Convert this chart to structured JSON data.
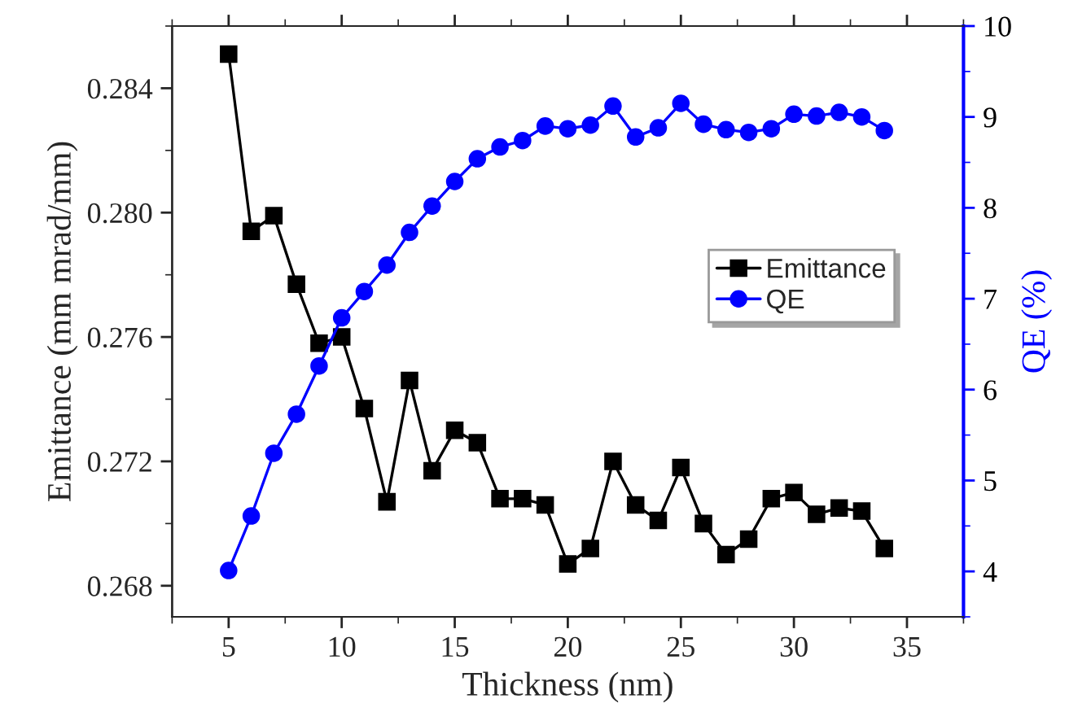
{
  "chart_data": {
    "type": "line",
    "xlabel": "Thickness (nm)",
    "ylabel": "Emittance (mm mrad/mm)",
    "y2label": "QE (%)",
    "x": [
      5,
      6,
      7,
      8,
      9,
      10,
      11,
      12,
      13,
      14,
      15,
      16,
      17,
      18,
      19,
      20,
      21,
      22,
      23,
      24,
      25,
      26,
      27,
      28,
      29,
      30,
      31,
      32,
      33,
      34
    ],
    "series": [
      {
        "name": "Emittance",
        "color": "#000000",
        "marker": "square",
        "values": [
          0.2851,
          0.2794,
          0.2799,
          0.2777,
          0.2758,
          0.276,
          0.2737,
          0.2707,
          0.2746,
          0.2717,
          0.273,
          0.2726,
          0.2708,
          0.2708,
          0.2706,
          0.2687,
          0.2692,
          0.272,
          0.2706,
          0.2701,
          0.2718,
          0.27,
          0.269,
          0.2695,
          0.2708,
          0.271,
          0.2703,
          0.2705,
          0.2704,
          0.2692
        ]
      },
      {
        "name": "QE",
        "color": "#0000ff",
        "marker": "circle",
        "axis": "y2",
        "values": [
          4.01,
          4.61,
          5.3,
          5.73,
          6.26,
          6.79,
          7.08,
          7.37,
          7.73,
          8.02,
          8.29,
          8.54,
          8.67,
          8.74,
          8.9,
          8.87,
          8.91,
          9.12,
          8.78,
          8.88,
          9.15,
          8.92,
          8.86,
          8.83,
          8.87,
          9.03,
          9.01,
          9.05,
          9.0,
          8.85
        ]
      }
    ],
    "xlim": [
      2.5,
      37.5
    ],
    "xticks": [
      5,
      10,
      15,
      20,
      25,
      30,
      35
    ],
    "ylim": [
      0.267,
      0.286
    ],
    "yticks": [
      0.268,
      0.272,
      0.276,
      {
        "value": 0.28,
        "label": "0.280"
      },
      0.284
    ],
    "y2lim": [
      3.5,
      10
    ],
    "y2ticks": [
      4,
      5,
      6,
      7,
      8,
      9,
      10
    ],
    "line_style": "solid",
    "grid": false,
    "legend": "right"
  }
}
